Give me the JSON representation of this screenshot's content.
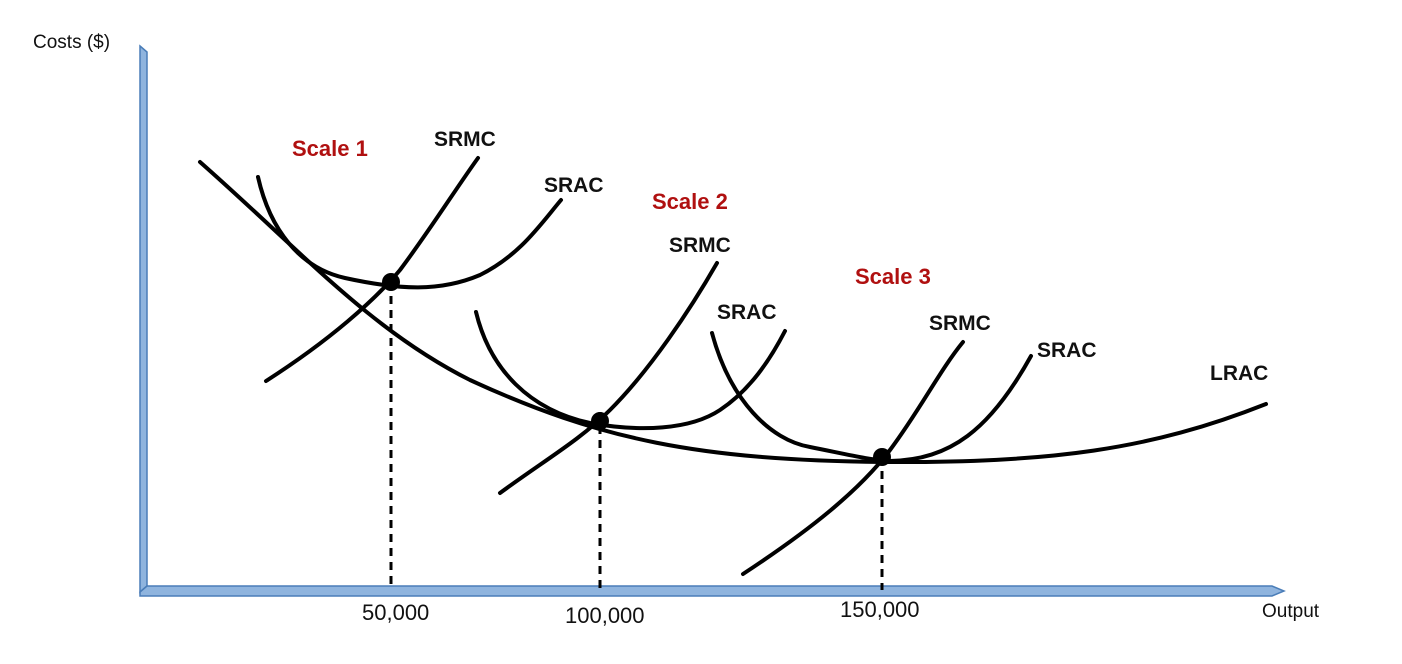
{
  "axes": {
    "y_label": "Costs ($)",
    "x_label": "Output",
    "ticks": [
      "50,000",
      "100,000",
      "150,000"
    ],
    "color": "#5b8fc8"
  },
  "scales": [
    {
      "name": "Scale 1",
      "srmc": "SRMC",
      "srac": "SRAC"
    },
    {
      "name": "Scale 2",
      "srmc": "SRMC",
      "srac": "SRAC"
    },
    {
      "name": "Scale 3",
      "srmc": "SRMC",
      "srac": "SRAC"
    }
  ],
  "lrac_label": "LRAC",
  "scale_label_color": "#b01010"
}
